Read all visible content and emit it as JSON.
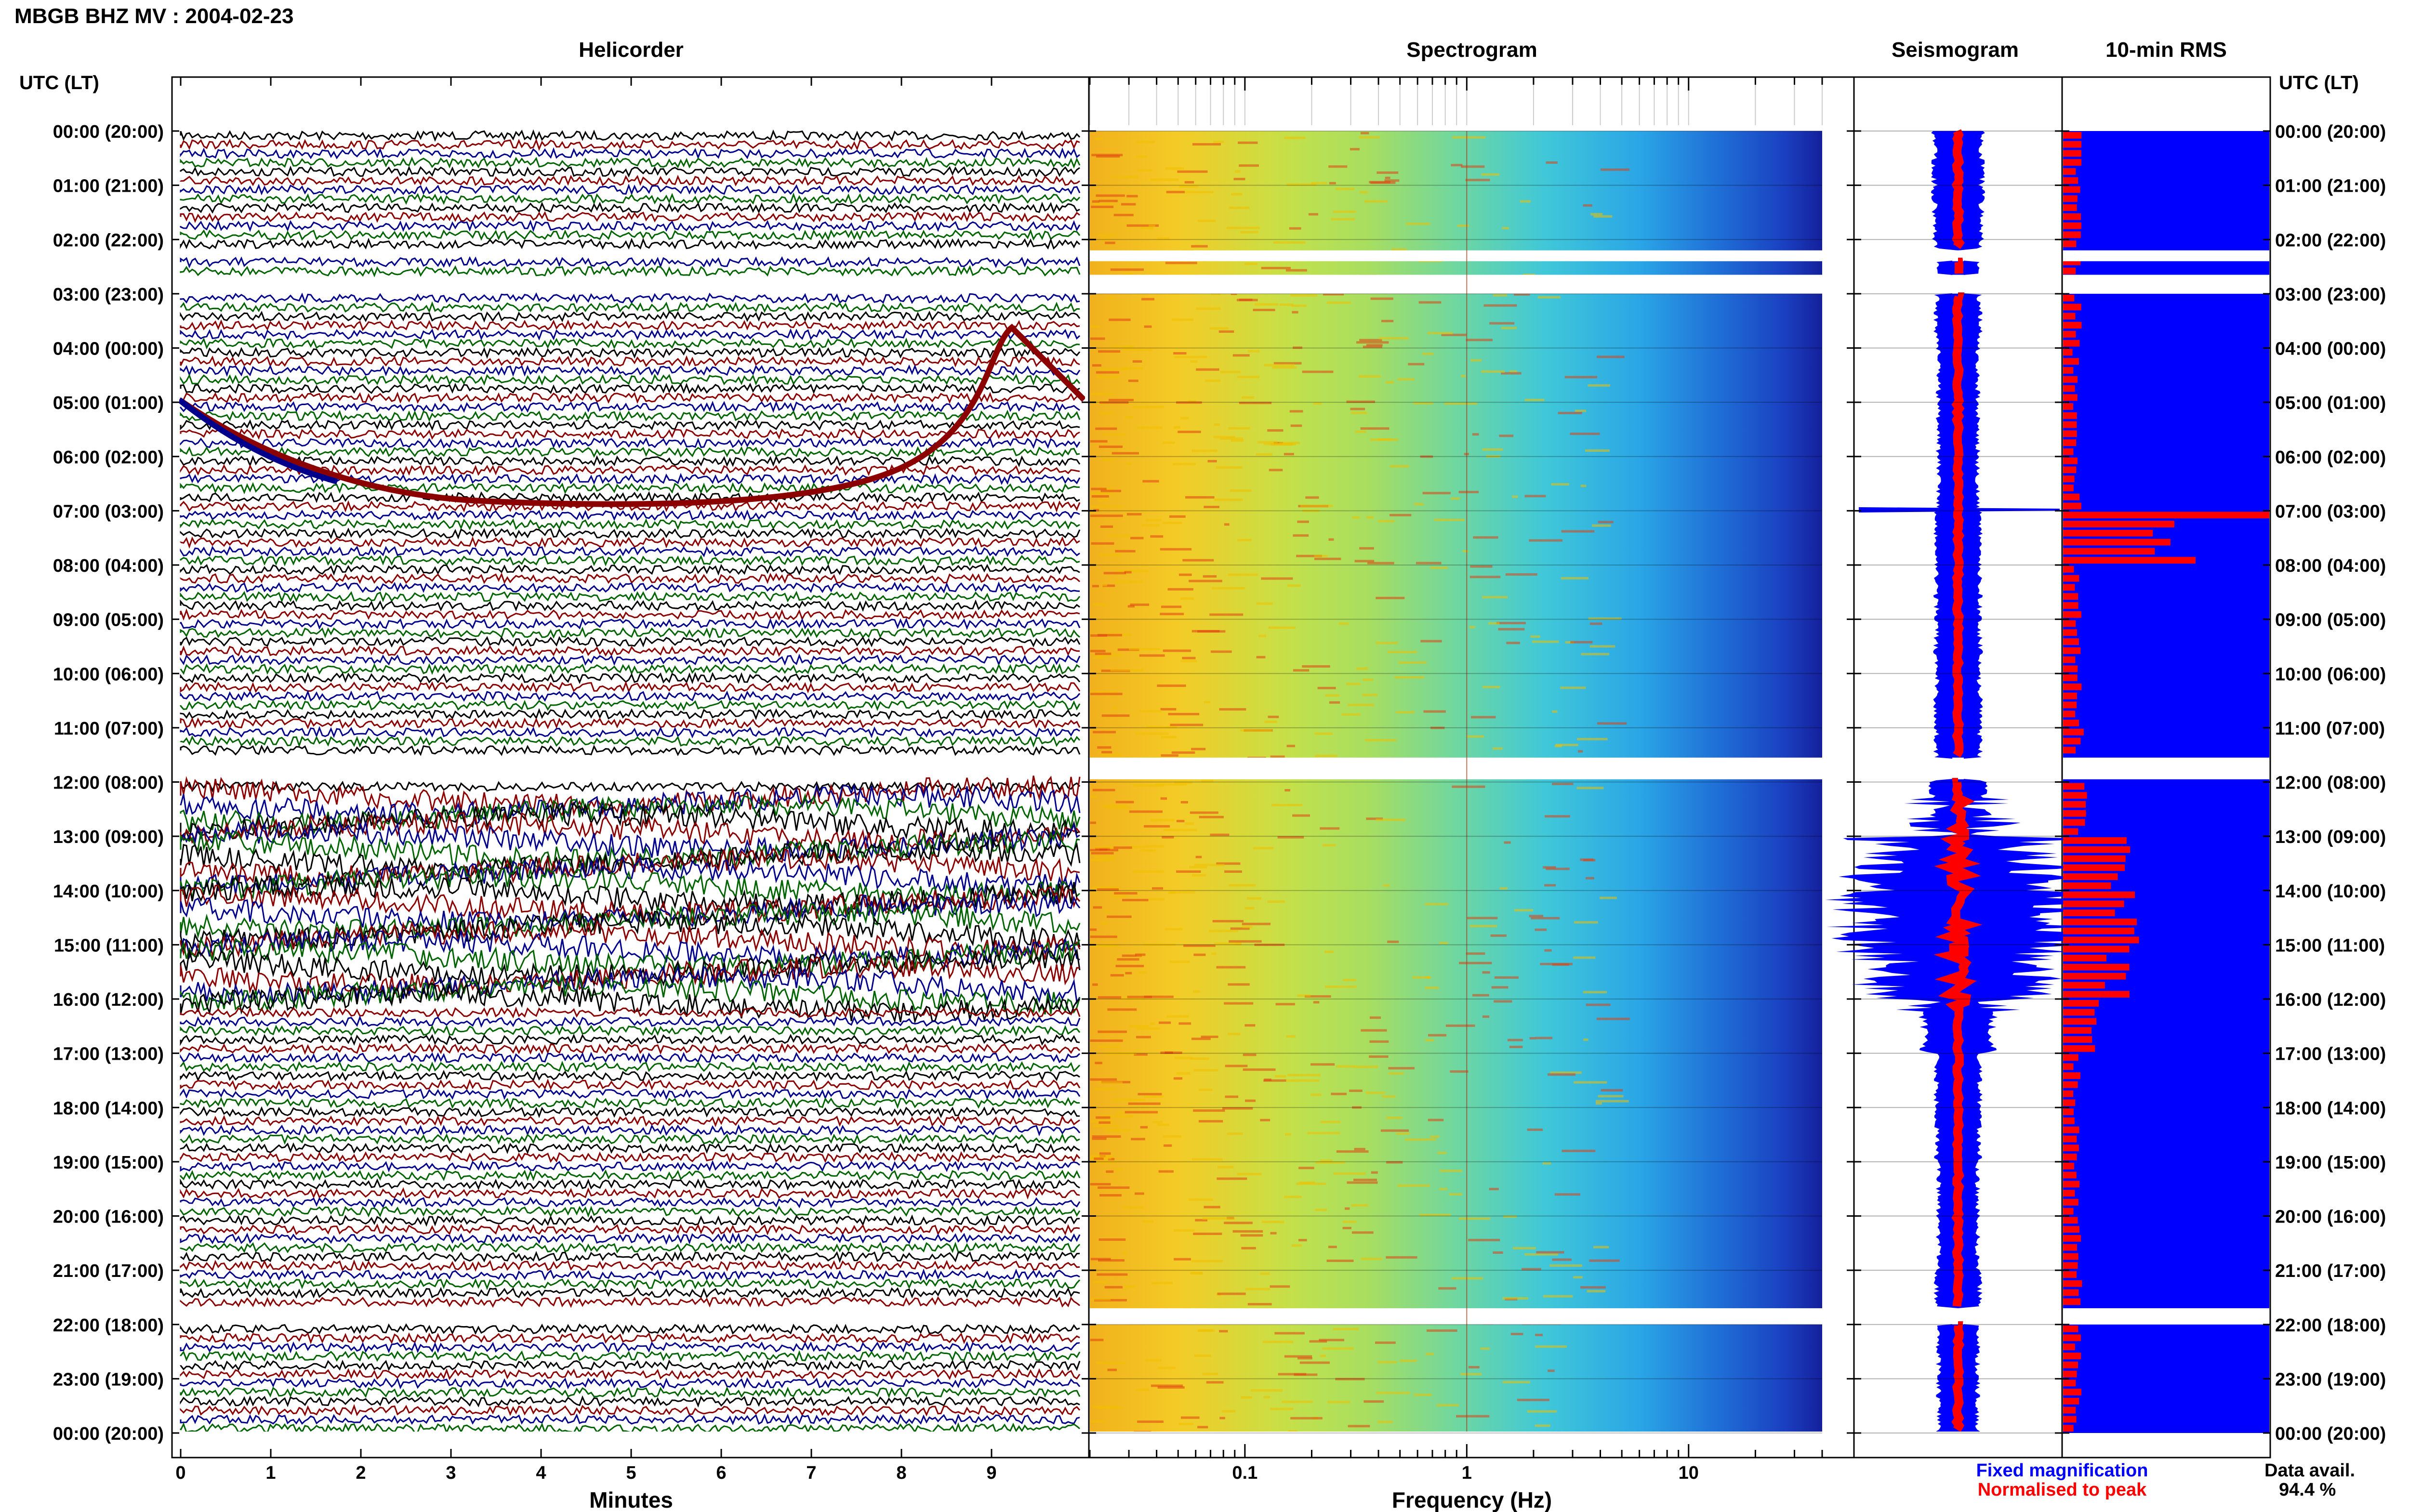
{
  "title": "MBGB BHZ MV : 2004-02-23",
  "panels": {
    "helicorder": "Helicorder",
    "spectrogram": "Spectrogram",
    "seismogram": "Seismogram",
    "rms": "10-min RMS"
  },
  "time_axis_label": "UTC (LT)",
  "time_labels": [
    "00:00 (20:00)",
    "01:00 (21:00)",
    "02:00 (22:00)",
    "03:00 (23:00)",
    "04:00 (00:00)",
    "05:00 (01:00)",
    "06:00 (02:00)",
    "07:00 (03:00)",
    "08:00 (04:00)",
    "09:00 (05:00)",
    "10:00 (06:00)",
    "11:00 (07:00)",
    "12:00 (08:00)",
    "13:00 (09:00)",
    "14:00 (10:00)",
    "15:00 (11:00)",
    "16:00 (12:00)",
    "17:00 (13:00)",
    "18:00 (14:00)",
    "19:00 (15:00)",
    "20:00 (16:00)",
    "21:00 (17:00)",
    "22:00 (18:00)",
    "23:00 (19:00)",
    "00:00 (20:00)"
  ],
  "minutes_axis": {
    "label": "Minutes",
    "ticks": [
      "0",
      "1",
      "2",
      "3",
      "4",
      "5",
      "6",
      "7",
      "8",
      "9"
    ]
  },
  "frequency_axis": {
    "label": "Frequency (Hz)",
    "ticks": [
      "0.1",
      "1",
      "10"
    ]
  },
  "legend": {
    "fixed": "Fixed magnification",
    "normalised": "Normalised to peak"
  },
  "data_availability": {
    "label": "Data avail.",
    "value": "94.4 %"
  },
  "colors": {
    "helicorder_traces": [
      "#000000",
      "#8b0000",
      "#00008b",
      "#006400"
    ],
    "fixed": "#0000ff",
    "normalised": "#ff0000"
  },
  "chart_data": {
    "type": "table",
    "hours_utc": [
      0,
      1,
      2,
      3,
      4,
      5,
      6,
      7,
      8,
      9,
      10,
      11,
      12,
      13,
      14,
      15,
      16,
      17,
      18,
      19,
      20,
      21,
      22,
      23
    ],
    "data_gaps_utc_hours": [
      [
        2.2,
        2.4
      ],
      [
        2.65,
        3.0
      ],
      [
        11.55,
        11.95
      ],
      [
        21.7,
        22.0
      ]
    ],
    "seismogram_fixed_halfwidth": [
      0.55,
      0.55,
      0.5,
      0.5,
      0.45,
      0.45,
      0.45,
      0.5,
      0.5,
      0.5,
      0.5,
      0.5,
      0.6,
      1.8,
      2.2,
      1.8,
      0.8,
      0.5,
      0.5,
      0.45,
      0.45,
      0.5,
      0.45,
      0.45
    ],
    "rms_relative": [
      0.08,
      0.07,
      0.07,
      0.07,
      0.06,
      0.06,
      0.07,
      0.5,
      0.07,
      0.07,
      0.07,
      0.08,
      0.1,
      0.25,
      0.3,
      0.28,
      0.15,
      0.07,
      0.07,
      0.07,
      0.07,
      0.08,
      0.07,
      0.07
    ],
    "frequency_range_hz": [
      0.02,
      40
    ]
  }
}
